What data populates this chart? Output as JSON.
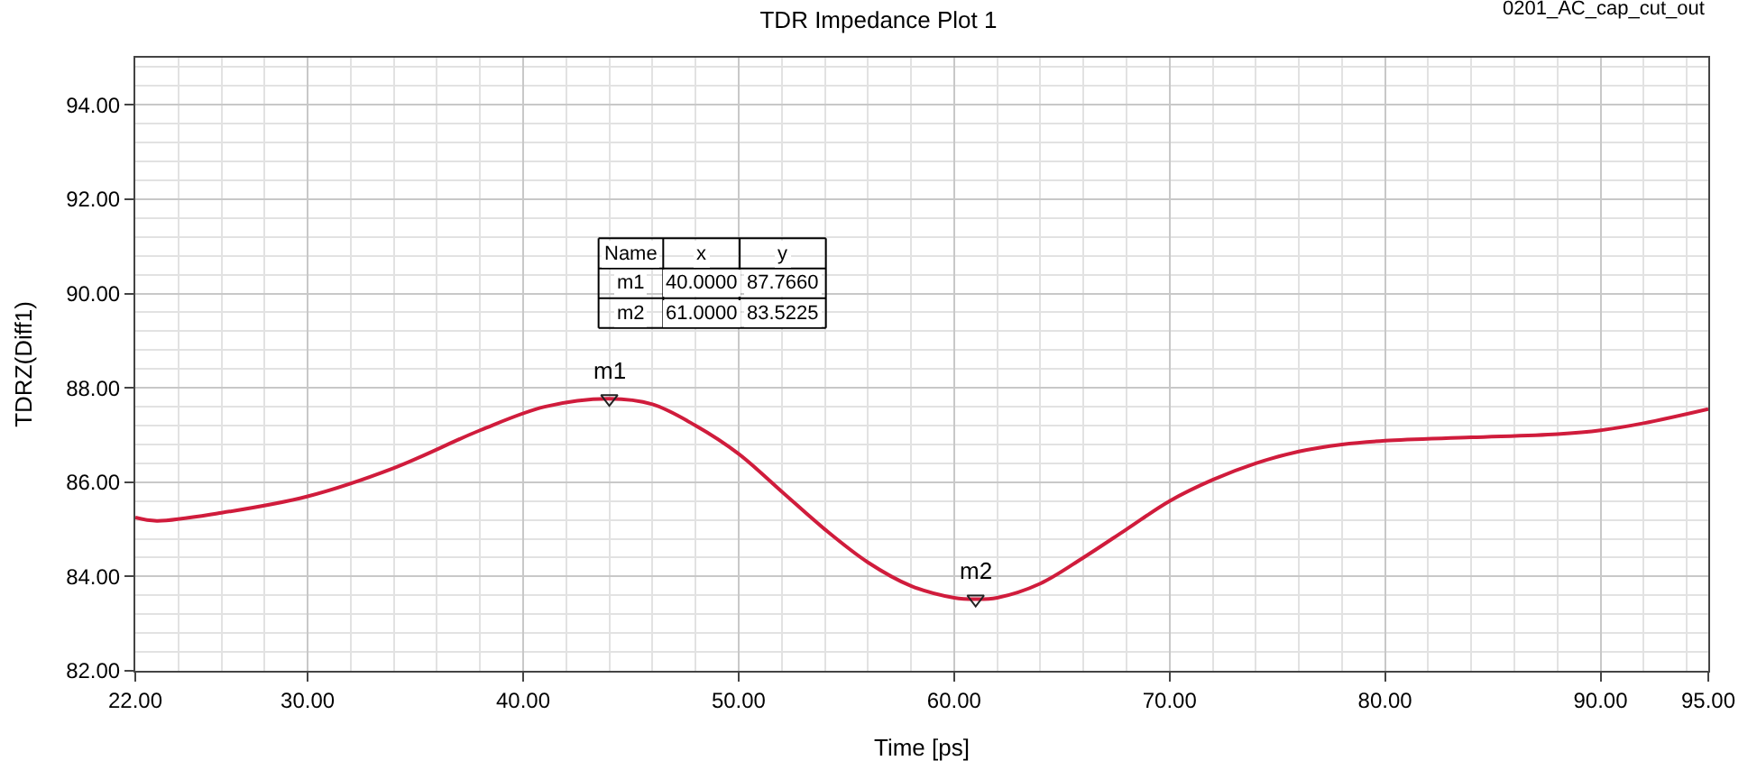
{
  "chart_data": {
    "type": "line",
    "title": "TDR Impedance Plot 1",
    "xlabel": "Time [ps]",
    "ylabel": "TDRZ(Diff1)",
    "x": [
      22,
      23,
      26,
      30,
      34,
      38,
      41,
      44,
      46,
      48,
      50,
      52,
      54,
      56,
      58,
      60,
      61,
      62,
      64,
      66,
      68,
      70,
      72,
      74,
      76,
      78,
      80,
      84,
      88,
      90,
      92,
      95
    ],
    "series": [
      {
        "color": "#d01c3c",
        "values": [
          85.25,
          85.18,
          85.35,
          85.7,
          86.3,
          87.1,
          87.6,
          87.77,
          87.65,
          87.2,
          86.6,
          85.8,
          85.0,
          84.3,
          83.8,
          83.55,
          83.52,
          83.55,
          83.85,
          84.4,
          85.0,
          85.6,
          86.05,
          86.4,
          86.65,
          86.8,
          86.88,
          86.95,
          87.02,
          87.1,
          87.25,
          87.55
        ]
      }
    ],
    "annotations": [
      {
        "text": "m1",
        "x": 44,
        "y": 87.77
      },
      {
        "text": "m2",
        "x": 61,
        "y": 83.52
      },
      "Name",
      "x",
      "y",
      "m1",
      "40.0000",
      "87.7660",
      "m2",
      "61.0000",
      "83.5225",
      "0201_AC_cap_cut_out"
    ],
    "xlim": [
      22,
      95
    ],
    "xticks": [
      {
        "value": 22,
        "label": "22.00"
      },
      {
        "value": 30,
        "label": "30.00"
      },
      {
        "value": 40,
        "label": "40.00"
      },
      {
        "value": 50,
        "label": "50.00"
      },
      {
        "value": 60,
        "label": "60.00"
      },
      {
        "value": 70,
        "label": "70.00"
      },
      {
        "value": 80,
        "label": "80.00"
      },
      {
        "value": 90,
        "label": "90.00"
      },
      {
        "value": 95,
        "label": "95.00"
      }
    ],
    "ylim": [
      82,
      95
    ],
    "yticks": [
      {
        "value": 82,
        "label": "82.00"
      },
      {
        "value": 84,
        "label": "84.00"
      },
      {
        "value": 86,
        "label": "86.00"
      },
      {
        "value": 88,
        "label": "88.00"
      },
      {
        "value": 90,
        "label": "90.00"
      },
      {
        "value": 92,
        "label": "92.00"
      },
      {
        "value": 94,
        "label": "94.00"
      }
    ],
    "grid": true,
    "marker": "none",
    "line_style": "solid"
  }
}
